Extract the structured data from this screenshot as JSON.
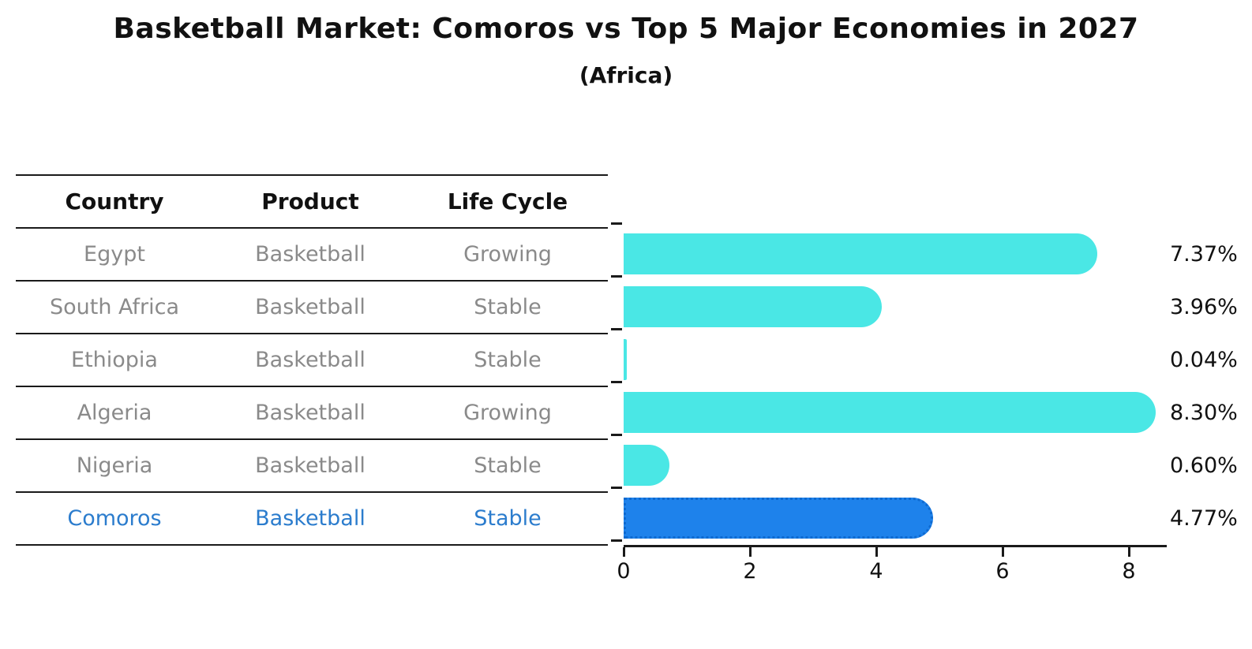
{
  "header": {
    "title": "Basketball Market: Comoros vs Top 5 Major Economies in 2027",
    "subtitle": "(Africa)"
  },
  "table": {
    "columns": [
      "Country",
      "Product",
      "Life Cycle"
    ],
    "rows": [
      {
        "country": "Egypt",
        "product": "Basketball",
        "life_cycle": "Growing",
        "highlight": false
      },
      {
        "country": "South Africa",
        "product": "Basketball",
        "life_cycle": "Stable",
        "highlight": false
      },
      {
        "country": "Ethiopia",
        "product": "Basketball",
        "life_cycle": "Stable",
        "highlight": false
      },
      {
        "country": "Algeria",
        "product": "Basketball",
        "life_cycle": "Growing",
        "highlight": false
      },
      {
        "country": "Nigeria",
        "product": "Basketball",
        "life_cycle": "Stable",
        "highlight": false
      },
      {
        "country": "Comoros",
        "product": "Basketball",
        "life_cycle": "Stable",
        "highlight": true
      }
    ]
  },
  "chart_data": {
    "type": "bar",
    "orientation": "horizontal",
    "title": "Basketball Market: Comoros vs Top 5 Major Economies in 2027",
    "subtitle": "(Africa)",
    "categories": [
      "Egypt",
      "South Africa",
      "Ethiopia",
      "Algeria",
      "Nigeria",
      "Comoros"
    ],
    "values": [
      7.37,
      3.96,
      0.04,
      8.3,
      0.6,
      4.77
    ],
    "value_labels": [
      "7.37%",
      "3.96%",
      "0.04%",
      "8.30%",
      "0.60%",
      "4.77%"
    ],
    "x_ticks": [
      "0",
      "2",
      "4",
      "6",
      "8"
    ],
    "xlim": [
      0,
      8.6
    ],
    "xlabel": "",
    "ylabel": "",
    "grid": false,
    "legend": "none",
    "highlight_index": 5,
    "colors": {
      "bar_default": "#4ae7e5",
      "bar_highlight": "#1e82eb",
      "bar_highlight_border": "#0f6ad0",
      "highlight_text": "#2b7ccd",
      "row_text": "#8a8a8a",
      "header_text": "#111111",
      "axis": "#1a1a1a",
      "value_label_text": "#111111"
    }
  }
}
